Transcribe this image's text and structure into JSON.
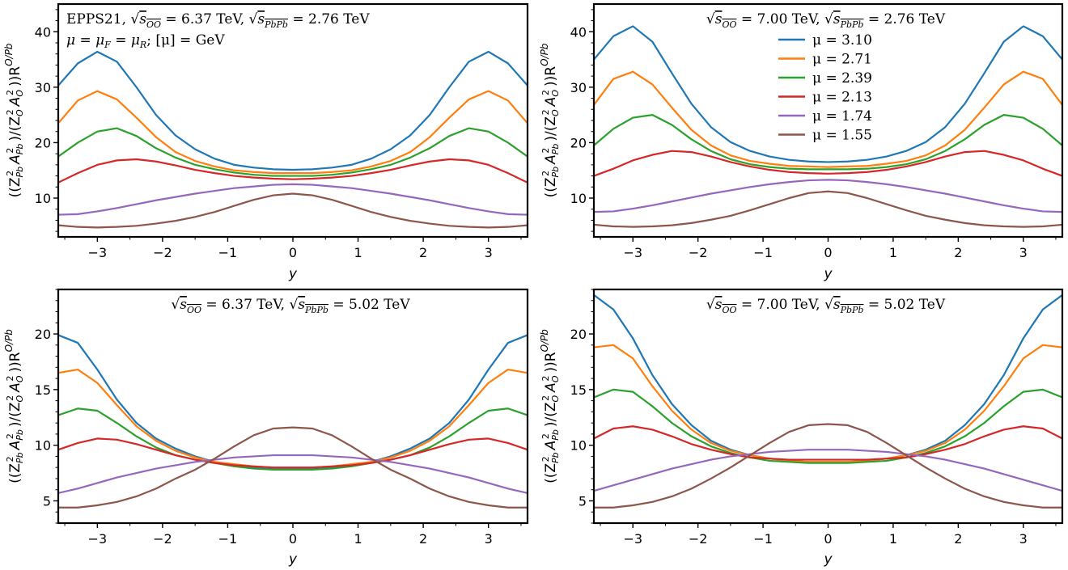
{
  "chart_data": [
    {
      "type": "line",
      "panel": "top-left",
      "xlabel": "y",
      "ylabel": "((Z_Pb^2 A_Pb^2)/(Z_O^2 A_O^2)) R^{O/Pb}",
      "xlim": [
        -3.6,
        3.6
      ],
      "ylim": [
        3,
        45
      ],
      "xticks": [
        -3,
        -2,
        -1,
        0,
        1,
        2,
        3
      ],
      "yticks": [
        10,
        20,
        30,
        40
      ],
      "annotation": [
        "EPPS21, √s_OO = 6.37 TeV, √s_PbPb = 2.76 TeV",
        "μ = μ_F = μ_R;  [μ] = GeV"
      ],
      "x": [
        -3.6,
        -3.3,
        -3.0,
        -2.7,
        -2.4,
        -2.1,
        -1.8,
        -1.5,
        -1.2,
        -0.9,
        -0.6,
        -0.3,
        0.0,
        0.3,
        0.6,
        0.9,
        1.2,
        1.5,
        1.8,
        2.1,
        2.4,
        2.7,
        3.0,
        3.3,
        3.6
      ],
      "series": [
        {
          "name": "μ = 3.10",
          "color": "#1f77b4",
          "values": [
            30.3,
            34.3,
            36.4,
            34.6,
            30.0,
            25.0,
            21.3,
            18.8,
            17.1,
            16.0,
            15.5,
            15.2,
            15.1,
            15.2,
            15.5,
            16.0,
            17.1,
            18.8,
            21.3,
            25.0,
            30.0,
            34.6,
            36.4,
            34.3,
            30.3
          ]
        },
        {
          "name": "μ = 2.71",
          "color": "#ff7f0e",
          "values": [
            23.5,
            27.6,
            29.3,
            27.8,
            24.5,
            21.0,
            18.3,
            16.7,
            15.7,
            15.0,
            14.7,
            14.5,
            14.5,
            14.5,
            14.7,
            15.0,
            15.7,
            16.7,
            18.3,
            21.0,
            24.5,
            27.8,
            29.3,
            27.6,
            23.5
          ]
        },
        {
          "name": "μ = 2.39",
          "color": "#2ca02c",
          "values": [
            17.5,
            20.0,
            22.0,
            22.6,
            21.2,
            19.0,
            17.3,
            16.0,
            15.2,
            14.6,
            14.2,
            14.0,
            14.0,
            14.0,
            14.2,
            14.6,
            15.2,
            16.0,
            17.3,
            19.0,
            21.2,
            22.6,
            22.0,
            20.0,
            17.5
          ]
        },
        {
          "name": "μ = 2.13",
          "color": "#d62728",
          "values": [
            12.8,
            14.5,
            16.0,
            16.8,
            17.0,
            16.6,
            15.9,
            15.1,
            14.5,
            14.0,
            13.7,
            13.5,
            13.4,
            13.5,
            13.7,
            14.0,
            14.5,
            15.1,
            15.9,
            16.6,
            17.0,
            16.8,
            16.0,
            14.5,
            12.8
          ]
        },
        {
          "name": "μ = 1.74",
          "color": "#9467bd",
          "values": [
            7.0,
            7.1,
            7.6,
            8.2,
            8.9,
            9.6,
            10.2,
            10.8,
            11.3,
            11.8,
            12.1,
            12.4,
            12.5,
            12.4,
            12.1,
            11.8,
            11.3,
            10.8,
            10.2,
            9.6,
            8.9,
            8.2,
            7.6,
            7.1,
            7.0
          ]
        },
        {
          "name": "μ = 1.55",
          "color": "#8c564b",
          "values": [
            5.1,
            4.8,
            4.7,
            4.8,
            5.0,
            5.4,
            5.9,
            6.6,
            7.5,
            8.6,
            9.7,
            10.5,
            10.8,
            10.5,
            9.7,
            8.6,
            7.5,
            6.6,
            5.9,
            5.4,
            5.0,
            4.8,
            4.7,
            4.8,
            5.1
          ]
        }
      ]
    },
    {
      "type": "line",
      "panel": "top-right",
      "xlabel": "y",
      "ylabel": "((Z_Pb^2 A_Pb^2)/(Z_O^2 A_O^2)) R^{O/Pb}",
      "xlim": [
        -3.6,
        3.6
      ],
      "ylim": [
        3,
        45
      ],
      "xticks": [
        -3,
        -2,
        -1,
        0,
        1,
        2,
        3
      ],
      "yticks": [
        10,
        20,
        30,
        40
      ],
      "annotation": [
        "√s_OO = 7.00 TeV, √s_PbPb = 2.76 TeV"
      ],
      "legend": "top-center",
      "x": [
        -3.6,
        -3.3,
        -3.0,
        -2.7,
        -2.4,
        -2.1,
        -1.8,
        -1.5,
        -1.2,
        -0.9,
        -0.6,
        -0.3,
        0.0,
        0.3,
        0.6,
        0.9,
        1.2,
        1.5,
        1.8,
        2.1,
        2.4,
        2.7,
        3.0,
        3.3,
        3.6
      ],
      "series": [
        {
          "name": "μ = 3.10",
          "color": "#1f77b4",
          "values": [
            35.0,
            39.2,
            41.0,
            38.2,
            32.5,
            27.0,
            22.8,
            20.1,
            18.5,
            17.5,
            16.9,
            16.6,
            16.5,
            16.6,
            16.9,
            17.5,
            18.5,
            20.1,
            22.8,
            27.0,
            32.5,
            38.2,
            41.0,
            39.2,
            35.0
          ]
        },
        {
          "name": "μ = 2.71",
          "color": "#ff7f0e",
          "values": [
            26.8,
            31.5,
            32.8,
            30.5,
            26.3,
            22.3,
            19.5,
            17.7,
            16.7,
            16.2,
            15.8,
            15.7,
            15.6,
            15.7,
            15.8,
            16.2,
            16.7,
            17.7,
            19.5,
            22.3,
            26.3,
            30.5,
            32.8,
            31.5,
            26.8
          ]
        },
        {
          "name": "μ = 2.39",
          "color": "#2ca02c",
          "values": [
            19.5,
            22.5,
            24.5,
            25.0,
            23.2,
            20.6,
            18.5,
            17.0,
            16.1,
            15.6,
            15.3,
            15.2,
            15.2,
            15.2,
            15.3,
            15.6,
            16.1,
            17.0,
            18.5,
            20.6,
            23.2,
            25.0,
            24.5,
            22.5,
            19.5
          ]
        },
        {
          "name": "μ = 2.13",
          "color": "#d62728",
          "values": [
            14.0,
            15.3,
            16.8,
            17.8,
            18.5,
            18.3,
            17.5,
            16.5,
            15.7,
            15.1,
            14.7,
            14.5,
            14.4,
            14.5,
            14.7,
            15.1,
            15.7,
            16.5,
            17.5,
            18.3,
            18.5,
            17.8,
            16.8,
            15.3,
            14.0
          ]
        },
        {
          "name": "μ = 1.74",
          "color": "#9467bd",
          "values": [
            7.5,
            7.6,
            8.1,
            8.7,
            9.4,
            10.1,
            10.8,
            11.4,
            12.0,
            12.5,
            12.9,
            13.2,
            13.3,
            13.2,
            12.9,
            12.5,
            12.0,
            11.4,
            10.8,
            10.1,
            9.4,
            8.7,
            8.1,
            7.6,
            7.5
          ]
        },
        {
          "name": "μ = 1.55",
          "color": "#8c564b",
          "values": [
            5.2,
            4.9,
            4.8,
            4.9,
            5.1,
            5.5,
            6.1,
            6.8,
            7.8,
            8.9,
            10.0,
            10.9,
            11.2,
            10.9,
            10.0,
            8.9,
            7.8,
            6.8,
            6.1,
            5.5,
            5.1,
            4.9,
            4.8,
            4.9,
            5.2
          ]
        }
      ]
    },
    {
      "type": "line",
      "panel": "bottom-left",
      "xlabel": "y",
      "ylabel": "((Z_Pb^2 A_Pb^2)/(Z_O^2 A_O^2)) R^{O/Pb}",
      "xlim": [
        -3.6,
        3.6
      ],
      "ylim": [
        3,
        24
      ],
      "xticks": [
        -3,
        -2,
        -1,
        0,
        1,
        2,
        3
      ],
      "yticks": [
        5,
        10,
        15,
        20
      ],
      "annotation": [
        "√s_OO = 6.37 TeV, √s_PbPb = 5.02 TeV"
      ],
      "x": [
        -3.6,
        -3.3,
        -3.0,
        -2.7,
        -2.4,
        -2.1,
        -1.8,
        -1.5,
        -1.2,
        -0.9,
        -0.6,
        -0.3,
        0.0,
        0.3,
        0.6,
        0.9,
        1.2,
        1.5,
        1.8,
        2.1,
        2.4,
        2.7,
        3.0,
        3.3,
        3.6
      ],
      "series": [
        {
          "name": "μ = 3.10",
          "color": "#1f77b4",
          "values": [
            19.9,
            19.2,
            16.8,
            14.1,
            12.0,
            10.6,
            9.7,
            9.0,
            8.5,
            8.2,
            8.0,
            7.9,
            7.9,
            7.9,
            8.0,
            8.2,
            8.5,
            9.0,
            9.7,
            10.6,
            12.0,
            14.1,
            16.8,
            19.2,
            19.9
          ]
        },
        {
          "name": "μ = 2.71",
          "color": "#ff7f0e",
          "values": [
            16.5,
            16.8,
            15.6,
            13.6,
            11.7,
            10.4,
            9.5,
            8.9,
            8.5,
            8.3,
            8.1,
            8.0,
            8.0,
            8.0,
            8.1,
            8.3,
            8.5,
            8.9,
            9.5,
            10.4,
            11.7,
            13.6,
            15.6,
            16.8,
            16.5
          ]
        },
        {
          "name": "μ = 2.39",
          "color": "#2ca02c",
          "values": [
            12.7,
            13.3,
            13.1,
            12.0,
            10.8,
            9.8,
            9.1,
            8.7,
            8.4,
            8.1,
            7.9,
            7.8,
            7.8,
            7.8,
            7.9,
            8.1,
            8.4,
            8.7,
            9.1,
            9.8,
            10.8,
            12.0,
            13.1,
            13.3,
            12.7
          ]
        },
        {
          "name": "μ = 2.13",
          "color": "#d62728",
          "values": [
            9.6,
            10.2,
            10.6,
            10.5,
            10.1,
            9.6,
            9.1,
            8.7,
            8.4,
            8.2,
            8.1,
            8.0,
            8.0,
            8.0,
            8.1,
            8.2,
            8.4,
            8.7,
            9.1,
            9.6,
            10.1,
            10.5,
            10.6,
            10.2,
            9.6
          ]
        },
        {
          "name": "μ = 1.74",
          "color": "#9467bd",
          "values": [
            5.7,
            6.1,
            6.6,
            7.1,
            7.5,
            7.9,
            8.2,
            8.5,
            8.7,
            8.9,
            9.0,
            9.1,
            9.1,
            9.1,
            9.0,
            8.9,
            8.7,
            8.5,
            8.2,
            7.9,
            7.5,
            7.1,
            6.6,
            6.1,
            5.7
          ]
        },
        {
          "name": "μ = 1.55",
          "color": "#8c564b",
          "values": [
            4.4,
            4.4,
            4.6,
            4.9,
            5.4,
            6.1,
            7.0,
            7.8,
            8.8,
            9.9,
            10.9,
            11.5,
            11.6,
            11.5,
            10.9,
            9.9,
            8.8,
            7.8,
            7.0,
            6.1,
            5.4,
            4.9,
            4.6,
            4.4,
            4.4
          ]
        }
      ]
    },
    {
      "type": "line",
      "panel": "bottom-right",
      "xlabel": "y",
      "ylabel": "((Z_Pb^2 A_Pb^2)/(Z_O^2 A_O^2)) R^{O/Pb}",
      "xlim": [
        -3.6,
        3.6
      ],
      "ylim": [
        3,
        24
      ],
      "xticks": [
        -3,
        -2,
        -1,
        0,
        1,
        2,
        3
      ],
      "yticks": [
        5,
        10,
        15,
        20
      ],
      "annotation": [
        "√s_OO = 7.00 TeV, √s_PbPb = 5.02 TeV"
      ],
      "x": [
        -3.6,
        -3.3,
        -3.0,
        -2.7,
        -2.4,
        -2.1,
        -1.8,
        -1.5,
        -1.2,
        -0.9,
        -0.6,
        -0.3,
        0.0,
        0.3,
        0.6,
        0.9,
        1.2,
        1.5,
        1.8,
        2.1,
        2.4,
        2.7,
        3.0,
        3.3,
        3.6
      ],
      "series": [
        {
          "name": "μ = 3.10",
          "color": "#1f77b4",
          "values": [
            23.5,
            22.2,
            19.6,
            16.3,
            13.7,
            11.8,
            10.4,
            9.6,
            9.1,
            8.8,
            8.6,
            8.5,
            8.5,
            8.5,
            8.6,
            8.8,
            9.1,
            9.6,
            10.4,
            11.8,
            13.7,
            16.3,
            19.6,
            22.2,
            23.5
          ]
        },
        {
          "name": "μ = 2.71",
          "color": "#ff7f0e",
          "values": [
            18.8,
            19.0,
            17.8,
            15.3,
            13.1,
            11.4,
            10.2,
            9.5,
            9.1,
            8.8,
            8.6,
            8.5,
            8.5,
            8.5,
            8.6,
            8.8,
            9.1,
            9.5,
            10.2,
            11.4,
            13.1,
            15.3,
            17.8,
            19.0,
            18.8
          ]
        },
        {
          "name": "μ = 2.39",
          "color": "#2ca02c",
          "values": [
            14.3,
            15.0,
            14.8,
            13.5,
            12.0,
            10.8,
            9.9,
            9.3,
            8.9,
            8.6,
            8.5,
            8.4,
            8.4,
            8.4,
            8.5,
            8.6,
            8.9,
            9.3,
            9.9,
            10.8,
            12.0,
            13.5,
            14.8,
            15.0,
            14.3
          ]
        },
        {
          "name": "μ = 2.13",
          "color": "#d62728",
          "values": [
            10.6,
            11.5,
            11.7,
            11.4,
            10.8,
            10.1,
            9.6,
            9.2,
            8.9,
            8.8,
            8.7,
            8.7,
            8.7,
            8.7,
            8.7,
            8.8,
            8.9,
            9.2,
            9.6,
            10.1,
            10.8,
            11.4,
            11.7,
            11.5,
            10.6
          ]
        },
        {
          "name": "μ = 1.74",
          "color": "#9467bd",
          "values": [
            5.9,
            6.4,
            6.9,
            7.4,
            7.9,
            8.3,
            8.7,
            9.0,
            9.2,
            9.4,
            9.5,
            9.6,
            9.6,
            9.6,
            9.5,
            9.4,
            9.2,
            9.0,
            8.7,
            8.3,
            7.9,
            7.4,
            6.9,
            6.4,
            5.9
          ]
        },
        {
          "name": "μ = 1.55",
          "color": "#8c564b",
          "values": [
            4.4,
            4.4,
            4.6,
            4.9,
            5.4,
            6.1,
            7.0,
            8.0,
            9.1,
            10.2,
            11.2,
            11.8,
            11.9,
            11.8,
            11.2,
            10.2,
            9.1,
            8.0,
            7.0,
            6.1,
            5.4,
            4.9,
            4.6,
            4.4,
            4.4
          ]
        }
      ]
    }
  ],
  "labels": {
    "ylabel_main": "((Z",
    "ylabel_sub1": "Pb",
    "ylabel_sup1": "2",
    "ylabel_mid1": "A",
    "ylabel_sub2": "Pb",
    "ylabel_sup2": "2",
    "ylabel_mid2": ")/(Z",
    "ylabel_sub3": "O",
    "ylabel_sup3": "2",
    "ylabel_mid3": "A",
    "ylabel_sub4": "O",
    "ylabel_sup4": "2",
    "ylabel_mid4": "))R",
    "ylabel_sup5": "O/Pb",
    "xlabel": "y",
    "epps": "EPPS21, ",
    "mu_line": "μ = μ",
    "mu_F": "F",
    "mu_eq": " = μ",
    "mu_R": "R",
    "mu_unit": ";  [μ] = GeV",
    "sqrt_sym": "√",
    "s_letter": "s",
    "sub_OO": "OO",
    "sub_PbPb": "PbPb",
    "energies": {
      "tl_oo": " = 6.37 TeV, ",
      "tl_pb": " = 2.76 TeV",
      "tr_oo": " = 7.00 TeV, ",
      "tr_pb": " = 2.76 TeV",
      "bl_oo": " = 6.37 TeV, ",
      "bl_pb": " = 5.02 TeV",
      "br_oo": " = 7.00 TeV, ",
      "br_pb": " = 5.02 TeV"
    }
  }
}
